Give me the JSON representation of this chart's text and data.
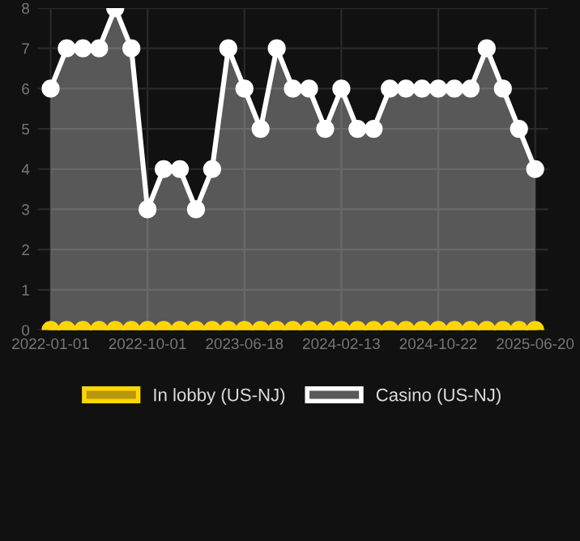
{
  "chart_data": {
    "type": "area",
    "categories": [
      "2022-01-01",
      null,
      null,
      null,
      null,
      null,
      "2022-10-01",
      null,
      null,
      null,
      null,
      null,
      "2023-06-18",
      null,
      null,
      null,
      null,
      null,
      "2024-02-13",
      null,
      null,
      null,
      null,
      null,
      "2024-10-22",
      null,
      null,
      null,
      null,
      null,
      "2025-06-20"
    ],
    "series": [
      {
        "name": "In lobby (US-NJ)",
        "type": "line",
        "color": "#ffd700",
        "values": [
          0,
          0,
          0,
          0,
          0,
          0,
          0,
          0,
          0,
          0,
          0,
          0,
          0,
          0,
          0,
          0,
          0,
          0,
          0,
          0,
          0,
          0,
          0,
          0,
          0,
          0,
          0,
          0,
          0,
          0,
          0
        ]
      },
      {
        "name": "Casino (US-NJ)",
        "color": "#ffffff",
        "values": [
          6,
          7,
          7,
          7,
          8,
          7,
          3,
          4,
          4,
          3,
          4,
          7,
          6,
          5,
          7,
          6,
          6,
          5,
          6,
          5,
          5,
          6,
          6,
          6,
          6,
          6,
          6,
          7,
          6,
          5,
          4
        ]
      }
    ],
    "ylim": [
      0,
      8
    ],
    "yticks": [
      0,
      1,
      2,
      3,
      4,
      5,
      6,
      7,
      8
    ],
    "grid": true,
    "legend": "bottom",
    "marker": "circle"
  }
}
